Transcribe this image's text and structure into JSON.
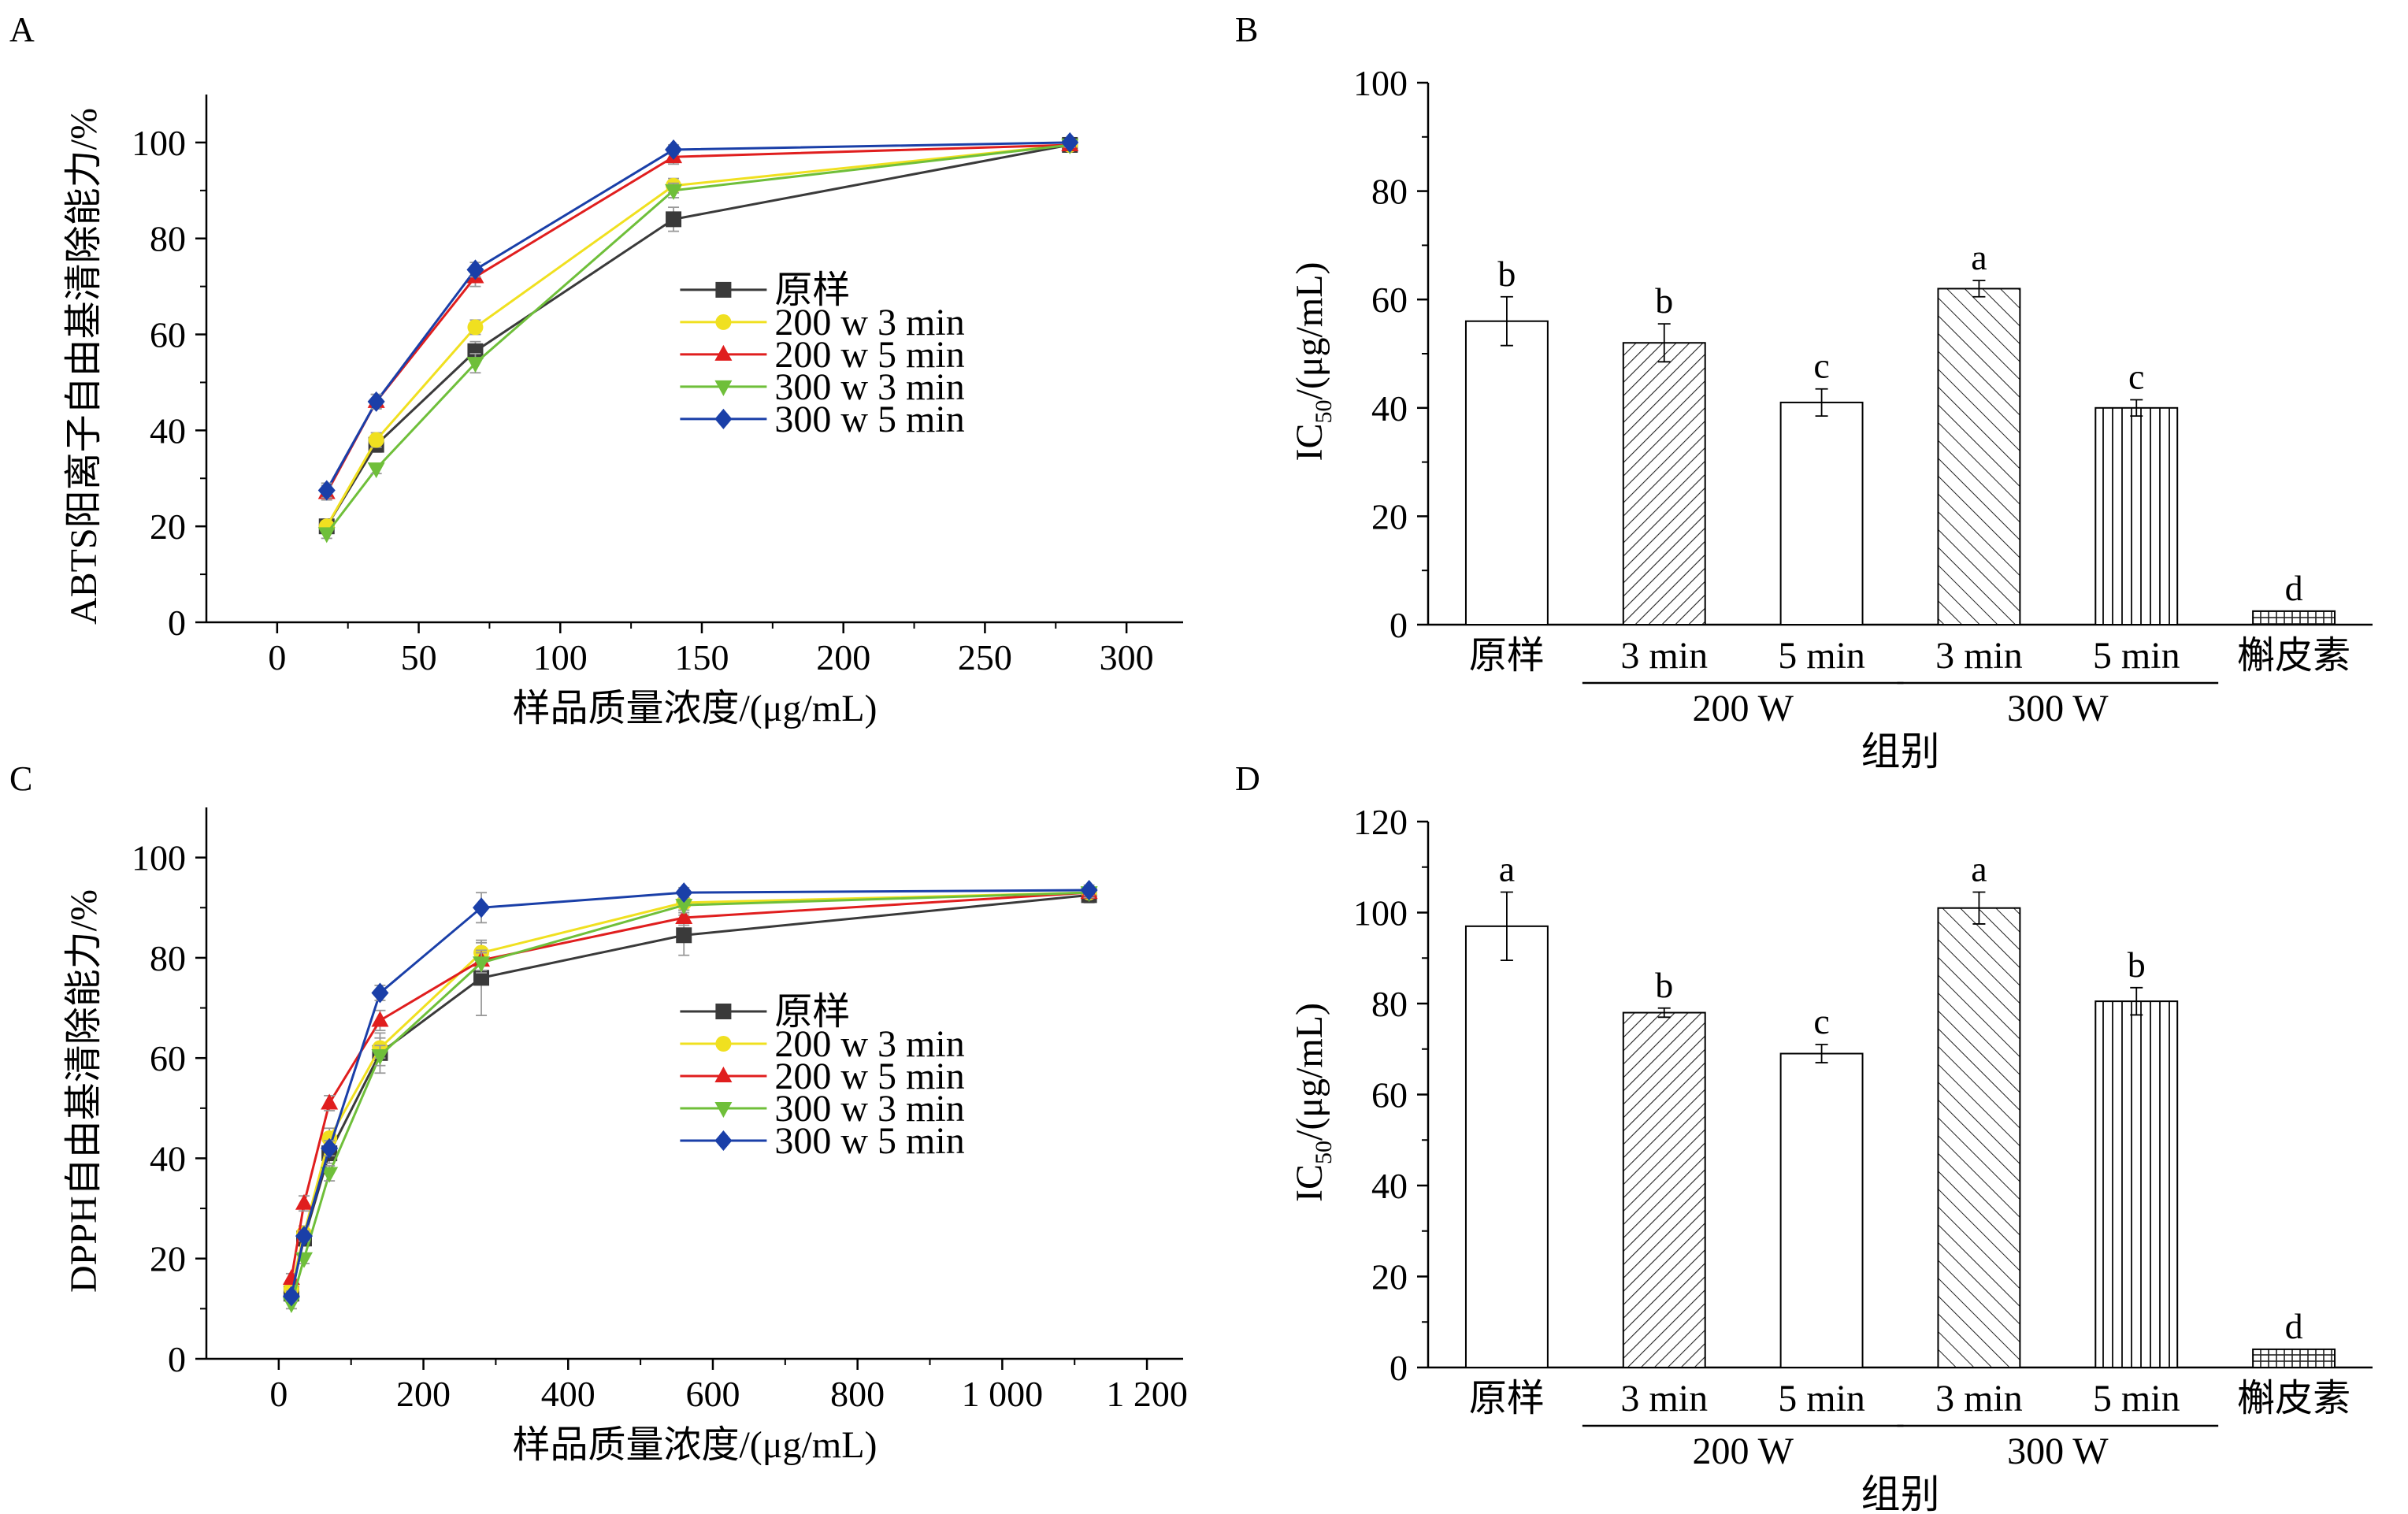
{
  "panels": [
    {
      "id": "A",
      "letter": "A"
    },
    {
      "id": "B",
      "letter": "B"
    },
    {
      "id": "C",
      "letter": "C"
    },
    {
      "id": "D",
      "letter": "D"
    }
  ],
  "chart_data": [
    {
      "panel": "A",
      "type": "line",
      "xlabel": "样品质量浓度/(μg/mL)",
      "ylabel": "ABTS阳离子自由基清除能力/%",
      "xlim": [
        -25,
        320
      ],
      "ylim": [
        0,
        110
      ],
      "xticks": [
        0,
        50,
        100,
        150,
        200,
        250,
        300
      ],
      "xtick_labels": [
        "0",
        "50",
        "100",
        "150",
        "200",
        "250",
        "300"
      ],
      "yticks": [
        0,
        20,
        40,
        60,
        80,
        100
      ],
      "ytick_labels": [
        "0",
        "20",
        "40",
        "60",
        "80",
        "100"
      ],
      "legend_position": "right-middle",
      "x": [
        17.5,
        35,
        70,
        140,
        280
      ],
      "series": [
        {
          "name": "原样",
          "color": "#3a3a3a",
          "marker": "square",
          "values": [
            20,
            37,
            56.5,
            84,
            99.5
          ],
          "errors": [
            1.5,
            1.5,
            2,
            2.5,
            0.5
          ]
        },
        {
          "name": "200 w 3 min",
          "color": "#f0e020",
          "marker": "circle",
          "values": [
            20,
            38,
            61.5,
            91,
            99.5
          ],
          "errors": [
            1,
            1.5,
            1.5,
            1.5,
            0.5
          ]
        },
        {
          "name": "200 w 5 min",
          "color": "#e01e1e",
          "marker": "triangle-up",
          "values": [
            27,
            46,
            72,
            97,
            99.5
          ],
          "errors": [
            1.5,
            1.5,
            2,
            1.5,
            0.5
          ]
        },
        {
          "name": "300 w 3 min",
          "color": "#6fbf3a",
          "marker": "triangle-down",
          "values": [
            18.5,
            32,
            54,
            90,
            99.5
          ],
          "errors": [
            1,
            1,
            2,
            1.5,
            0.5
          ]
        },
        {
          "name": "300 w 5 min",
          "color": "#1a3fa8",
          "marker": "diamond",
          "values": [
            27.5,
            46,
            73.5,
            98.5,
            100
          ],
          "errors": [
            1.5,
            1.5,
            1.5,
            1,
            0.5
          ]
        }
      ]
    },
    {
      "panel": "B",
      "type": "bar",
      "xlabel": "组别",
      "ylabel": "IC50/(μg/mL)",
      "ylim": [
        0,
        100
      ],
      "yticks": [
        0,
        20,
        40,
        60,
        80,
        100
      ],
      "ytick_labels": [
        "0",
        "20",
        "40",
        "60",
        "80",
        "100"
      ],
      "categories": [
        "原样",
        "3 min",
        "5 min",
        "3 min",
        "5 min",
        "槲皮素"
      ],
      "groups": [
        {
          "label": "200 W",
          "members": [
            1,
            2
          ]
        },
        {
          "label": "300 W",
          "members": [
            3,
            4
          ]
        }
      ],
      "values": [
        56,
        52,
        41,
        62,
        40,
        2.5
      ],
      "errors": [
        4.5,
        3.5,
        2.5,
        1.5,
        1.5,
        0
      ],
      "letters": [
        "b",
        "b",
        "c",
        "a",
        "c",
        "d"
      ],
      "patterns": [
        "none",
        "hatch-dense-right",
        "none",
        "hatch-left",
        "vertical",
        "grid"
      ]
    },
    {
      "panel": "C",
      "type": "line",
      "xlabel": "样品质量浓度/(μg/mL)",
      "ylabel": "DPPH自由基清除能力/%",
      "xlim": [
        -100,
        1250
      ],
      "ylim": [
        0,
        110
      ],
      "xticks": [
        0,
        200,
        400,
        600,
        800,
        1000,
        1200
      ],
      "xtick_labels": [
        "0",
        "200",
        "400",
        "600",
        "800",
        "1 000",
        "1 200"
      ],
      "yticks": [
        0,
        20,
        40,
        60,
        80,
        100
      ],
      "ytick_labels": [
        "0",
        "20",
        "40",
        "60",
        "80",
        "100"
      ],
      "legend_position": "right-middle",
      "x": [
        17.5,
        35,
        70,
        140,
        280,
        560,
        1120
      ],
      "series": [
        {
          "name": "原样",
          "color": "#3a3a3a",
          "marker": "square",
          "values": [
            13,
            24,
            41,
            61,
            76,
            84.5,
            92.5
          ],
          "errors": [
            1,
            1.5,
            2,
            4,
            7.5,
            4,
            1.5
          ]
        },
        {
          "name": "200 w 3 min",
          "color": "#f0e020",
          "marker": "circle",
          "values": [
            14,
            25,
            44,
            62,
            81,
            91,
            93
          ],
          "errors": [
            1,
            1.5,
            2,
            2,
            2,
            1.5,
            1
          ]
        },
        {
          "name": "200 w 5 min",
          "color": "#e01e1e",
          "marker": "triangle-up",
          "values": [
            16,
            31,
            51,
            67.5,
            79.5,
            88,
            93
          ],
          "errors": [
            1,
            1.5,
            1.5,
            2,
            2,
            1.5,
            1
          ]
        },
        {
          "name": "300 w 3 min",
          "color": "#6fbf3a",
          "marker": "triangle-down",
          "values": [
            11,
            20,
            37,
            60.5,
            79,
            90.5,
            93
          ],
          "errors": [
            1,
            1,
            1.5,
            2,
            2,
            1.5,
            1
          ]
        },
        {
          "name": "300 w 5 min",
          "color": "#1a3fa8",
          "marker": "diamond",
          "values": [
            12.5,
            24.5,
            42,
            73,
            90,
            93,
            93.5
          ],
          "errors": [
            1,
            1,
            1.5,
            1.5,
            3,
            1,
            1
          ]
        }
      ]
    },
    {
      "panel": "D",
      "type": "bar",
      "xlabel": "组别",
      "ylabel": "IC50/(μg/mL)",
      "ylim": [
        0,
        120
      ],
      "yticks": [
        0,
        20,
        40,
        60,
        80,
        100,
        120
      ],
      "ytick_labels": [
        "0",
        "20",
        "40",
        "60",
        "80",
        "100",
        "120"
      ],
      "categories": [
        "原样",
        "3 min",
        "5 min",
        "3 min",
        "5 min",
        "槲皮素"
      ],
      "groups": [
        {
          "label": "200 W",
          "members": [
            1,
            2
          ]
        },
        {
          "label": "300 W",
          "members": [
            3,
            4
          ]
        }
      ],
      "values": [
        97,
        78,
        69,
        101,
        80.5,
        4
      ],
      "errors": [
        7.5,
        1,
        2,
        3.5,
        3,
        0
      ],
      "letters": [
        "a",
        "b",
        "c",
        "a",
        "b",
        "d"
      ],
      "patterns": [
        "none",
        "hatch-dense-right",
        "none",
        "hatch-left",
        "vertical",
        "grid"
      ]
    }
  ]
}
